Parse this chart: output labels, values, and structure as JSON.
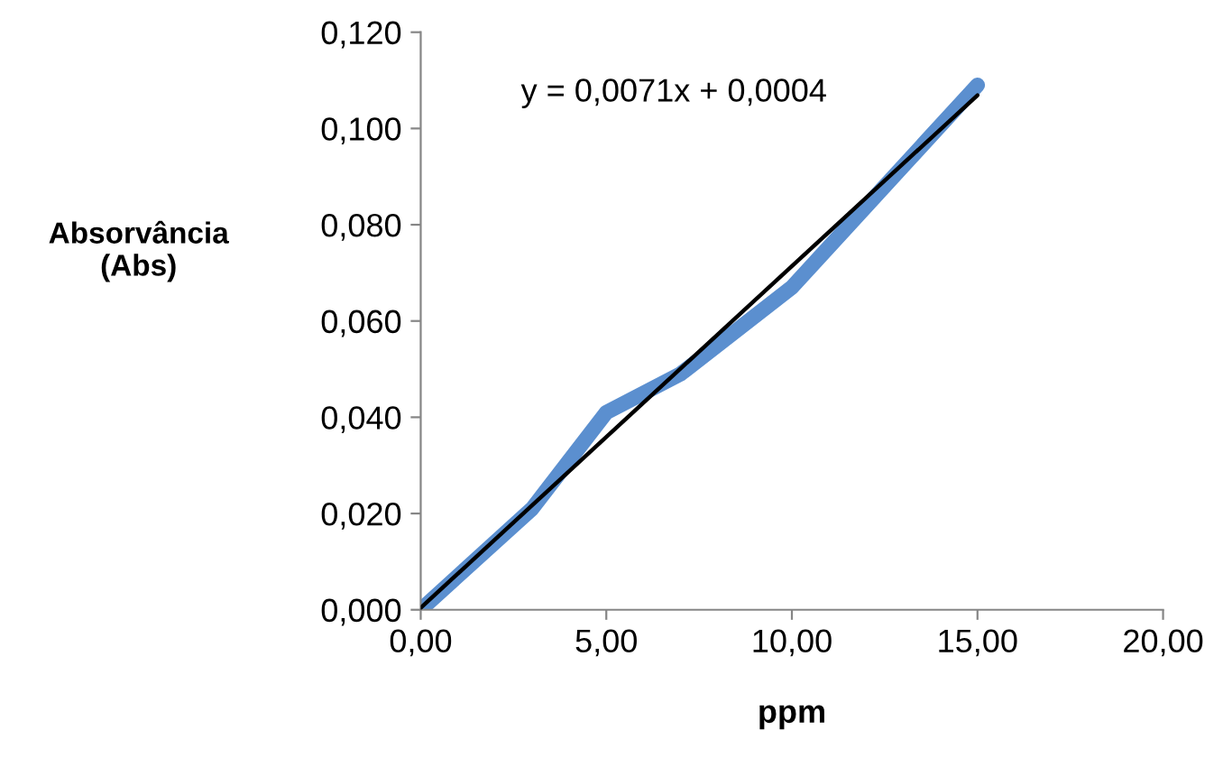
{
  "chart_data": {
    "type": "line",
    "xlabel": "ppm",
    "ylabel": "Absorvância\n(Abs)",
    "series": [
      {
        "color": "#5b8fcf",
        "x": [
          0,
          3,
          5,
          7,
          10,
          15
        ],
        "values": [
          0.0,
          0.021,
          0.041,
          0.049,
          0.067,
          0.109
        ]
      },
      {
        "color": "#000000",
        "x": [
          0,
          15
        ],
        "values": [
          0.0004,
          0.1069
        ]
      }
    ],
    "annotations": [
      "y = 0,0071x + 0,0004"
    ],
    "xlim": [
      0,
      20
    ],
    "ylim": [
      0,
      0.12
    ],
    "xticks": [
      {
        "value": 0,
        "label": "0,00"
      },
      {
        "value": 5,
        "label": "5,00"
      },
      {
        "value": 10,
        "label": "10,00"
      },
      {
        "value": 15,
        "label": "15,00"
      },
      {
        "value": 20,
        "label": "20,00"
      }
    ],
    "yticks": [
      {
        "value": 0,
        "label": "0,000"
      },
      {
        "value": 0.02,
        "label": "0,020"
      },
      {
        "value": 0.04,
        "label": "0,040"
      },
      {
        "value": 0.06,
        "label": "0,060"
      },
      {
        "value": 0.08,
        "label": "0,080"
      },
      {
        "value": 0.1,
        "label": "0,100"
      },
      {
        "value": 0.12,
        "label": "0,120"
      }
    ],
    "grid": false,
    "legend": false
  }
}
